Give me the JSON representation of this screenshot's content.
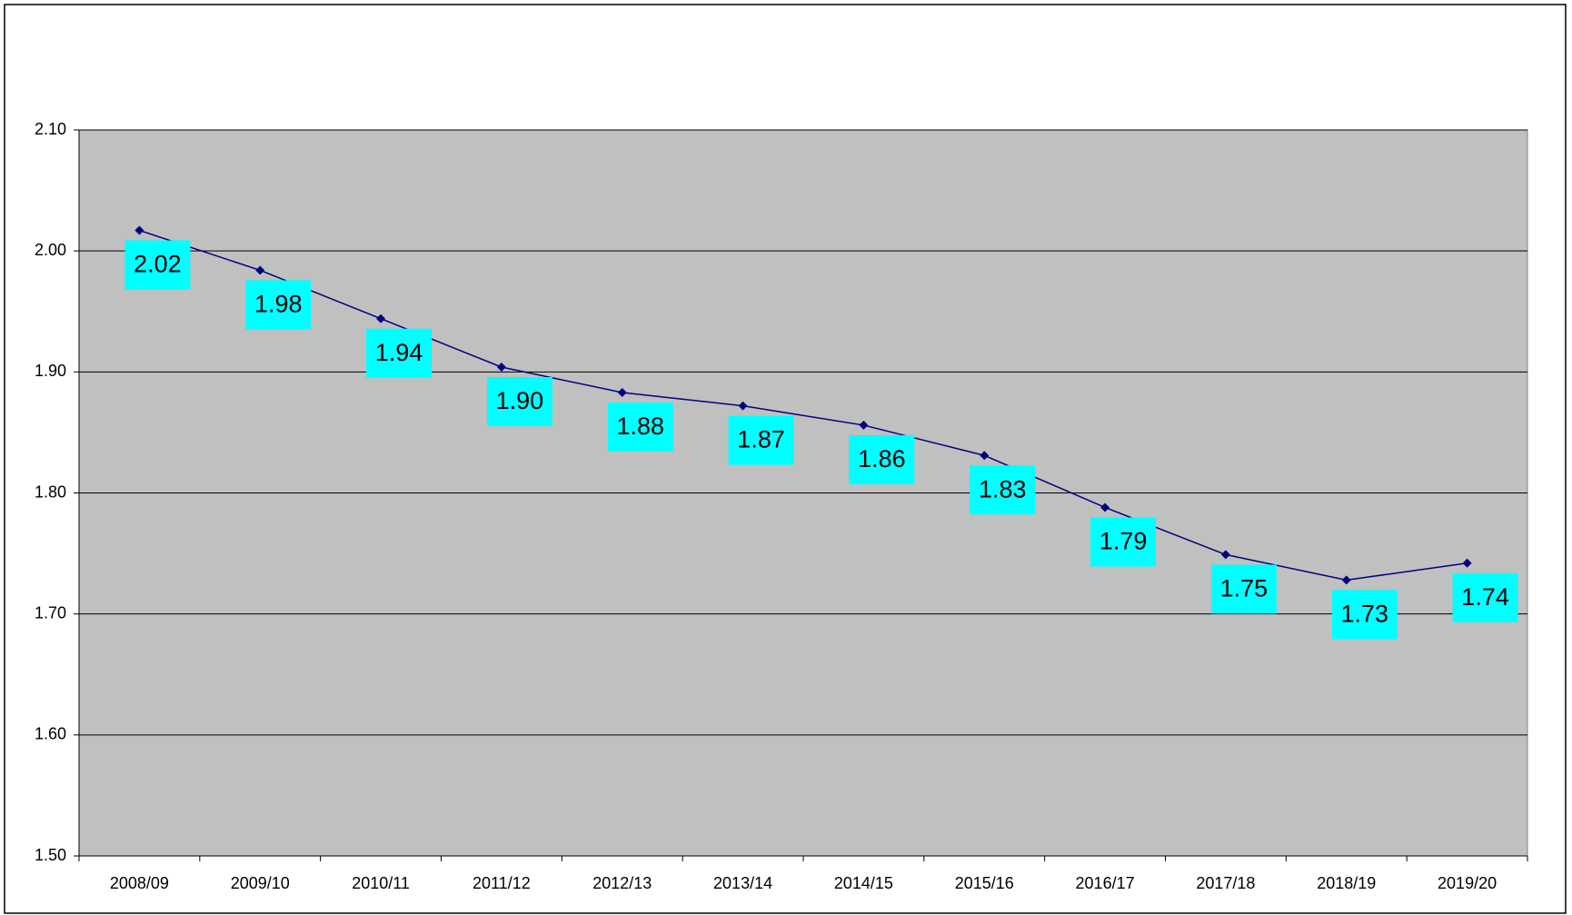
{
  "chart_data": {
    "type": "line",
    "categories": [
      "2008/09",
      "2009/10",
      "2010/11",
      "2011/12",
      "2012/13",
      "2013/14",
      "2014/15",
      "2015/16",
      "2016/17",
      "2017/18",
      "2018/19",
      "2019/20"
    ],
    "series": [
      {
        "color": "#000080",
        "values": [
          2.017,
          1.984,
          1.944,
          1.904,
          1.883,
          1.872,
          1.856,
          1.831,
          1.788,
          1.749,
          1.728,
          1.742
        ],
        "value_labels": [
          "2.02",
          "1.98",
          "1.94",
          "1.90",
          "1.88",
          "1.87",
          "1.86",
          "1.83",
          "1.79",
          "1.75",
          "1.73",
          "1.74"
        ]
      }
    ],
    "ylim": [
      1.5,
      2.1
    ],
    "yticks": [
      {
        "value": 1.5,
        "label": "1.50"
      },
      {
        "value": 1.6,
        "label": "1.60"
      },
      {
        "value": 1.7,
        "label": "1.70"
      },
      {
        "value": 1.8,
        "label": "1.80"
      },
      {
        "value": 1.9,
        "label": "1.90"
      },
      {
        "value": 2.0,
        "label": "2.00"
      },
      {
        "value": 2.1,
        "label": "2.10"
      }
    ],
    "grid": true,
    "plot_background": "#c0c0c0",
    "label_background": "#00ffff"
  }
}
